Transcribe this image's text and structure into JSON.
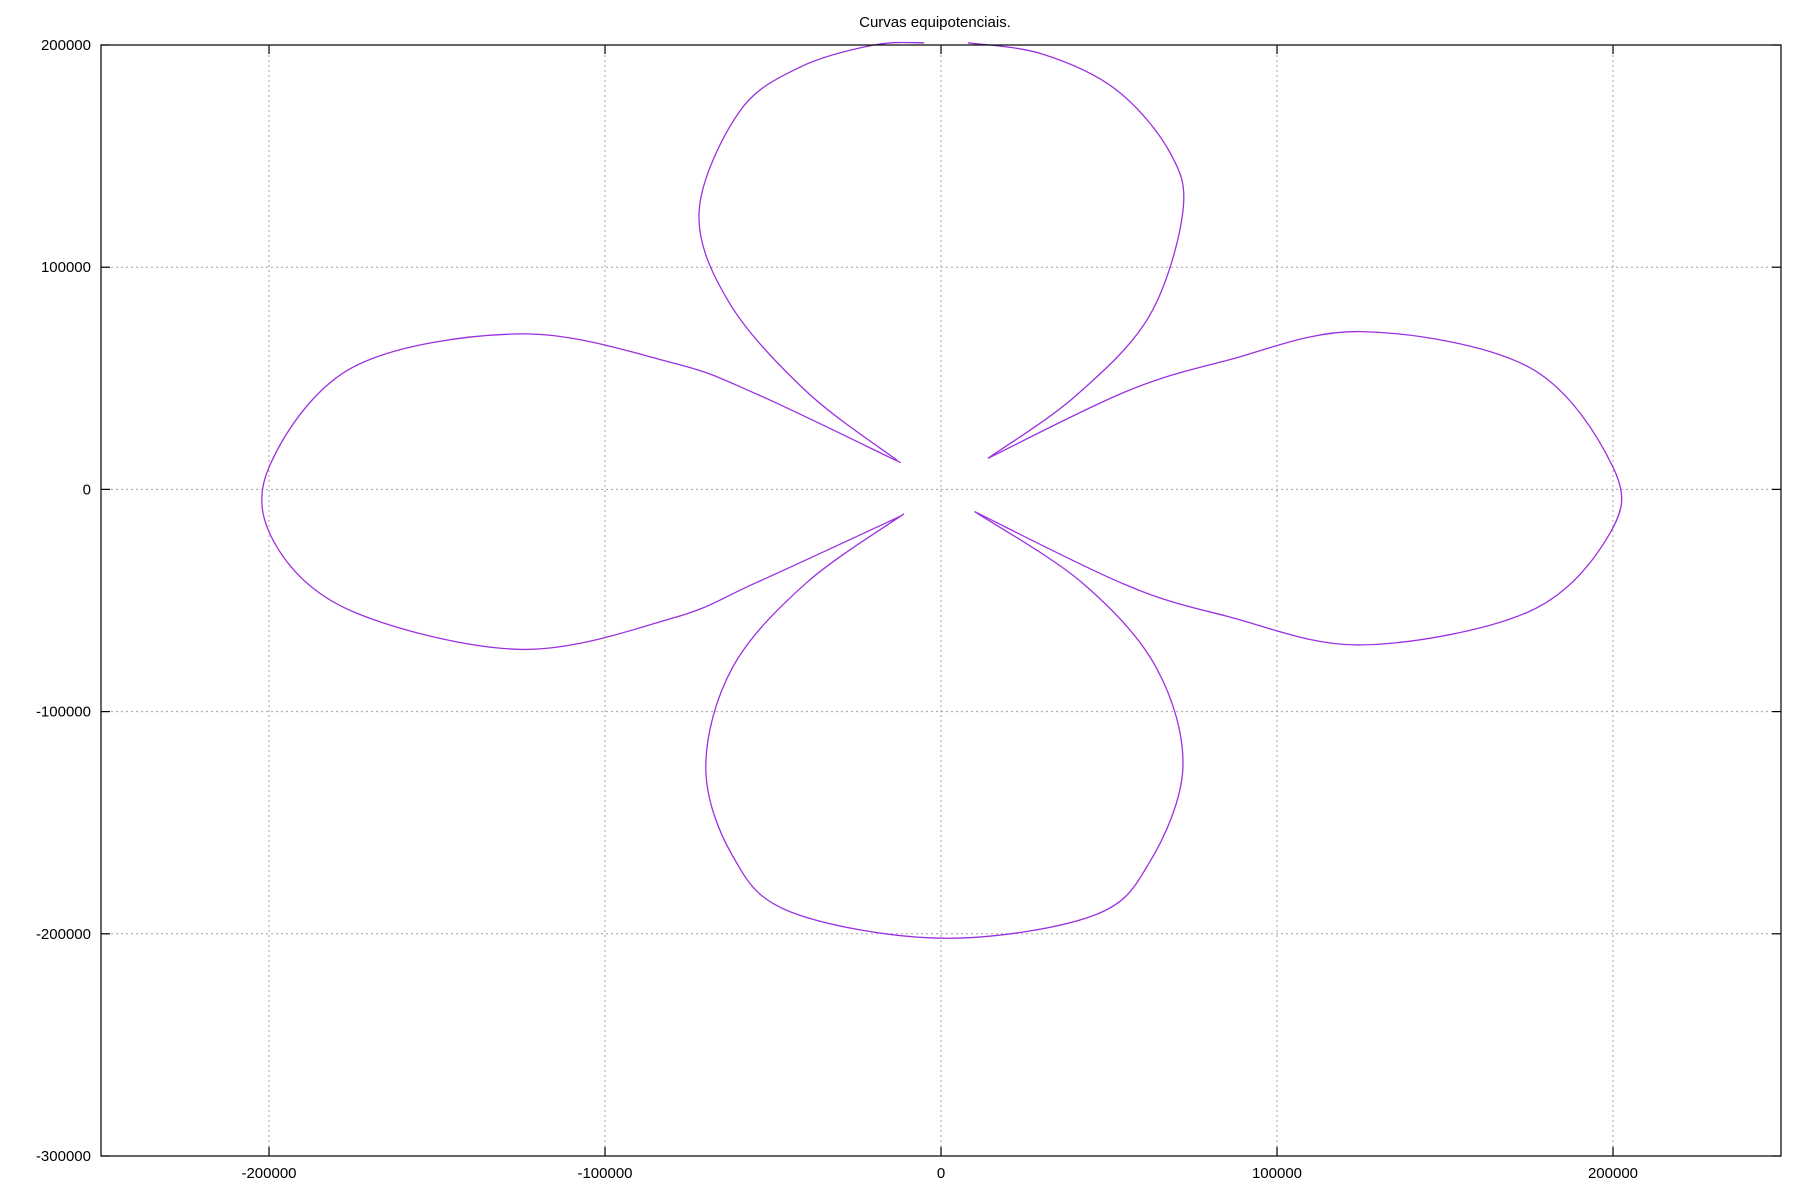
{
  "chart_data": {
    "type": "line",
    "title": "Curvas equipotenciais.",
    "xlabel": "",
    "ylabel": "",
    "xlim": [
      -250000,
      250000
    ],
    "ylim": [
      -300000,
      200000
    ],
    "xticks": [
      -200000,
      -100000,
      0,
      100000,
      200000
    ],
    "yticks": [
      -300000,
      -200000,
      -100000,
      0,
      100000,
      200000
    ],
    "xtick_labels": [
      "-200000",
      "-100000",
      "0",
      "100000",
      "200000"
    ],
    "ytick_labels": [
      "-300000",
      "-200000",
      "-100000",
      "0",
      "100000",
      "200000"
    ],
    "grid": true,
    "legend": "none",
    "series": [
      {
        "color": "#9b30e0",
        "segments": [
          [
            [
              -13000,
              13000
            ],
            [
              -40000,
              44000
            ],
            [
              -63000,
              84000
            ],
            [
              -72000,
              125000
            ],
            [
              -60000,
              170000
            ],
            [
              -42000,
              190000
            ],
            [
              -20000,
              200000
            ],
            [
              -5000,
              201000
            ]
          ],
          [
            [
              8000,
              201000
            ],
            [
              30000,
              196000
            ],
            [
              52000,
              180000
            ],
            [
              68000,
              152000
            ],
            [
              72000,
              125000
            ],
            [
              62000,
              78000
            ],
            [
              40000,
              42000
            ],
            [
              14000,
              14000
            ]
          ],
          [
            [
              -12000,
              12000
            ],
            [
              -55000,
              43000
            ],
            [
              -80000,
              57000
            ],
            [
              -125000,
              70000
            ],
            [
              -175000,
              55000
            ],
            [
              -200000,
              10000
            ],
            [
              -198000,
              -25000
            ],
            [
              -175000,
              -55000
            ],
            [
              -125000,
              -72000
            ],
            [
              -80000,
              -58000
            ],
            [
              -55000,
              -42000
            ],
            [
              -12000,
              -12000
            ]
          ],
          [
            [
              14000,
              14000
            ],
            [
              55000,
              44000
            ],
            [
              85000,
              58000
            ],
            [
              125000,
              71000
            ],
            [
              175000,
              55000
            ],
            [
              200000,
              10000
            ],
            [
              199000,
              -20000
            ],
            [
              175000,
              -55000
            ],
            [
              125000,
              -70000
            ],
            [
              85000,
              -57000
            ],
            [
              55000,
              -43000
            ],
            [
              10000,
              -10000
            ]
          ],
          [
            [
              -11000,
              -11000
            ],
            [
              -40000,
              -42000
            ],
            [
              -62000,
              -80000
            ],
            [
              -70000,
              -125000
            ],
            [
              -62000,
              -165000
            ],
            [
              -45000,
              -190000
            ],
            [
              0,
              -202000
            ],
            [
              45000,
              -192000
            ],
            [
              62000,
              -168000
            ],
            [
              72000,
              -125000
            ],
            [
              64000,
              -80000
            ],
            [
              42000,
              -42000
            ],
            [
              10000,
              -10000
            ]
          ]
        ]
      }
    ]
  }
}
